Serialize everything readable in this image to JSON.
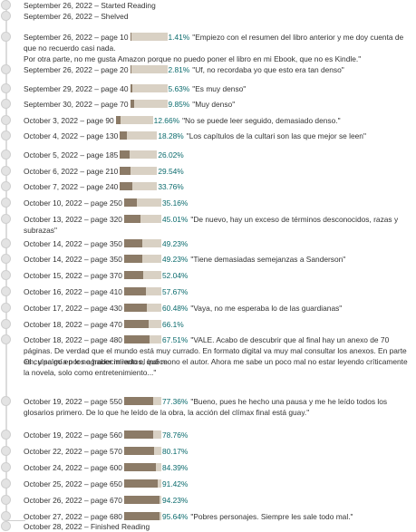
{
  "timeline": [
    {
      "date": "September 26, 2022",
      "status": "Started Reading"
    },
    {
      "date": "September 26, 2022",
      "status": "Shelved"
    },
    {
      "date": "September 26, 2022",
      "page": "page 10",
      "progress": 0.0141,
      "percent": "1.41%",
      "note": "\"Empiezo con el resumen del libro anterior y me doy cuenta de",
      "extra": [
        "que no recuerdo casi nada.",
        "Por otra parte, no me gusta Amazon porque no puedo poner el libro en mi Ebook, que no es Kindle.\""
      ]
    },
    {
      "date": "September 26, 2022",
      "page": "page 20",
      "progress": 0.0281,
      "percent": "2.81%",
      "note": "\"Uf, no recordaba yo que esto era tan denso\""
    },
    {
      "date": "September 29, 2022",
      "page": "page 40",
      "progress": 0.0563,
      "percent": "5.63%",
      "note": "\"Es muy denso\""
    },
    {
      "date": "September 30, 2022",
      "page": "page 70",
      "progress": 0.0985,
      "percent": "9.85%",
      "note": "\"Muy denso\""
    },
    {
      "date": "October 3, 2022",
      "page": "page 90",
      "progress": 0.1266,
      "percent": "12.66%",
      "note": "\"No se puede leer seguido, demasiado denso.\""
    },
    {
      "date": "October 4, 2022",
      "page": "page 130",
      "progress": 0.1828,
      "percent": "18.28%",
      "note": "\"Los capítulos de la cultari son las que mejor se leen\""
    },
    {
      "date": "October 5, 2022",
      "page": "page 185",
      "progress": 0.2602,
      "percent": "26.02%"
    },
    {
      "date": "October 6, 2022",
      "page": "page 210",
      "progress": 0.2954,
      "percent": "29.54%"
    },
    {
      "date": "October 7, 2022",
      "page": "page 240",
      "progress": 0.3376,
      "percent": "33.76%"
    },
    {
      "date": "October 10, 2022",
      "page": "page 250",
      "progress": 0.3516,
      "percent": "35.16%"
    },
    {
      "date": "October 13, 2022",
      "page": "page 320",
      "progress": 0.4501,
      "percent": "45.01%",
      "note": "\"De nuevo, hay un exceso de términos desconocidos, razas y",
      "extra": [
        "subrazas\""
      ]
    },
    {
      "date": "October 14, 2022",
      "page": "page 350",
      "progress": 0.4923,
      "percent": "49.23%"
    },
    {
      "date": "October 14, 2022",
      "page": "page 350",
      "progress": 0.4923,
      "percent": "49.23%",
      "note": "\"Tiene demasiadas semejanzas a Sanderson\""
    },
    {
      "date": "October 15, 2022",
      "page": "page 370",
      "progress": 0.5204,
      "percent": "52.04%"
    },
    {
      "date": "October 16, 2022",
      "page": "page 410",
      "progress": 0.5767,
      "percent": "57.67%"
    },
    {
      "date": "October 17, 2022",
      "page": "page 430",
      "progress": 0.6048,
      "percent": "60.48%",
      "note": "\"Vaya, no me esperaba lo de las guardianas\""
    },
    {
      "date": "October 18, 2022",
      "page": "page 470",
      "progress": 0.661,
      "percent": "66.1%"
    },
    {
      "date": "October 18, 2022",
      "page": "page 480",
      "progress": 0.6751,
      "percent": "67.51%",
      "note": "\"VALE. Acabo de descubrir que al final hay un anexo de 70",
      "extra": [
        "páginas. De verdad que el mundo está muy currado. En formato digital va muy mal consultar los anexos. En parte es culpa mía por no haber mirado el índice.",
        "Oh, y salgo en los agradecimientos, qué mono el autor. Ahora me sabe un poco mal no estar leyendo críticamente la novela, solo como entretenimiento...\""
      ]
    },
    {
      "date": "October 19, 2022",
      "page": "page 550",
      "progress": 0.7736,
      "percent": "77.36%",
      "note": "\"Bueno, pues he hecho una pausa y me he leído todos los",
      "extra": [
        "glosarios primero. De lo que he leído de la obra, la acción del clímax final está guay.\""
      ]
    },
    {
      "date": "October 19, 2022",
      "page": "page 560",
      "progress": 0.7876,
      "percent": "78.76%"
    },
    {
      "date": "October 22, 2022",
      "page": "page 570",
      "progress": 0.8017,
      "percent": "80.17%"
    },
    {
      "date": "October 24, 2022",
      "page": "page 600",
      "progress": 0.8439,
      "percent": "84.39%"
    },
    {
      "date": "October 25, 2022",
      "page": "page 650",
      "progress": 0.9142,
      "percent": "91.42%"
    },
    {
      "date": "October 26, 2022",
      "page": "page 670",
      "progress": 0.9423,
      "percent": "94.23%"
    },
    {
      "date": "October 27, 2022",
      "page": "page 680",
      "progress": 0.9564,
      "percent": "95.64%",
      "note": "\"Pobres personajes. Siempre les sale todo mal.\""
    },
    {
      "date": "October 28, 2022",
      "status": "Finished Reading"
    }
  ],
  "separator": " – "
}
